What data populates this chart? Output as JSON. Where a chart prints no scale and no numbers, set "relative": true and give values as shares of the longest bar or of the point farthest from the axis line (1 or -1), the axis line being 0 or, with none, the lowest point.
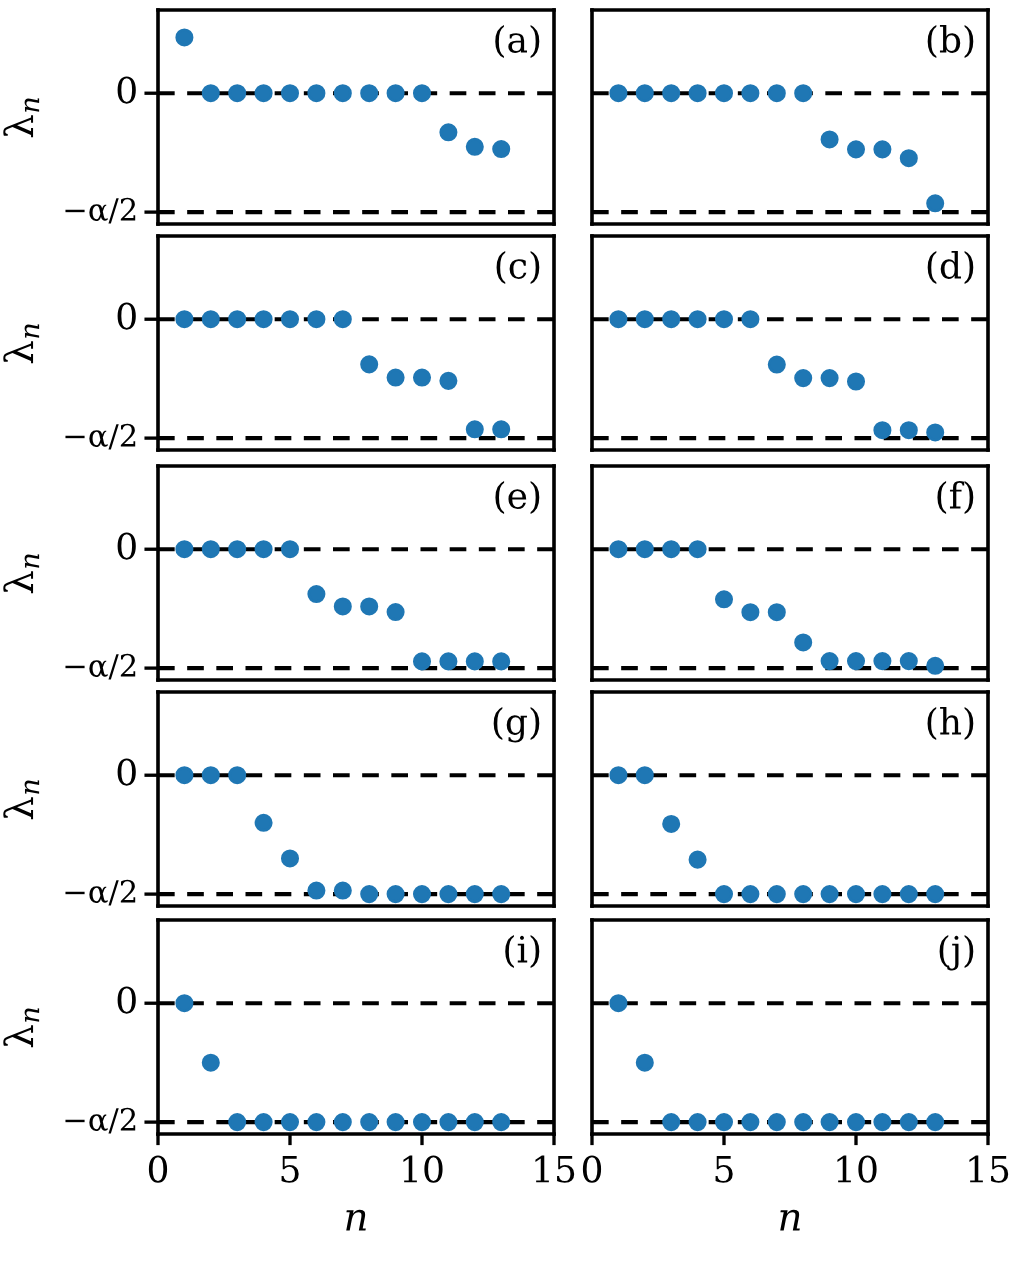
{
  "chart_data": [
    {
      "type": "scatter",
      "relative": true,
      "x": [
        1,
        2,
        3,
        4,
        5,
        6,
        7,
        8,
        9,
        10,
        11,
        12,
        13
      ],
      "series": [
        {
          "color": "#1f77b4",
          "values": [
            1,
            0,
            0,
            0,
            0,
            0,
            0,
            0,
            0,
            0,
            -0.7,
            -0.96,
            -1
          ]
        }
      ],
      "xlim": [
        0,
        15
      ],
      "xticks": [
        0,
        5,
        10,
        15
      ],
      "ylabel": "λ$_{n}$",
      "ref_lines": [
        {
          "axis": "y",
          "value": 0,
          "label": "0",
          "color": "#000000",
          "line_style": "dashed"
        },
        {
          "axis": "y",
          "value": -2.13,
          "label": "−α/2",
          "color": "#000000",
          "line_style": "dashed"
        }
      ],
      "annotations": [
        "(a)"
      ],
      "tick_labels": false,
      "marker": "circle",
      "grid": false,
      "legend": false
    },
    {
      "type": "scatter",
      "relative": true,
      "x": [
        1,
        2,
        3,
        4,
        5,
        6,
        7,
        8,
        9,
        10,
        11,
        12,
        13
      ],
      "series": [
        {
          "color": "#1f77b4",
          "values": [
            0,
            0,
            0,
            0,
            0,
            0,
            0,
            0,
            -0.42,
            -0.51,
            -0.51,
            -0.59,
            -1
          ]
        }
      ],
      "xlim": [
        0,
        15
      ],
      "xticks": [
        0,
        5,
        10,
        15
      ],
      "ref_lines": [
        {
          "axis": "y",
          "value": 0,
          "color": "#000000",
          "line_style": "dashed"
        },
        {
          "axis": "y",
          "value": -1.08,
          "color": "#000000",
          "line_style": "dashed"
        }
      ],
      "annotations": [
        "(b)"
      ],
      "tick_labels": false,
      "marker": "circle",
      "grid": false,
      "legend": false
    },
    {
      "type": "scatter",
      "relative": true,
      "x": [
        1,
        2,
        3,
        4,
        5,
        6,
        7,
        8,
        9,
        10,
        11,
        12,
        13
      ],
      "series": [
        {
          "color": "#1f77b4",
          "values": [
            0,
            0,
            0,
            0,
            0,
            0,
            0,
            -0.41,
            -0.53,
            -0.53,
            -0.56,
            -1,
            -1
          ]
        }
      ],
      "xlim": [
        0,
        15
      ],
      "xticks": [
        0,
        5,
        10,
        15
      ],
      "ylabel": "λ$_{n}$",
      "ref_lines": [
        {
          "axis": "y",
          "value": 0,
          "label": "0",
          "color": "#000000",
          "line_style": "dashed"
        },
        {
          "axis": "y",
          "value": -1.08,
          "label": "−α/2",
          "color": "#000000",
          "line_style": "dashed"
        }
      ],
      "annotations": [
        "(c)"
      ],
      "tick_labels": false,
      "marker": "circle",
      "grid": false,
      "legend": false
    },
    {
      "type": "scatter",
      "relative": true,
      "x": [
        1,
        2,
        3,
        4,
        5,
        6,
        7,
        8,
        9,
        10,
        11,
        12,
        13
      ],
      "series": [
        {
          "color": "#1f77b4",
          "values": [
            0,
            0,
            0,
            0,
            0,
            0,
            -0.4,
            -0.52,
            -0.52,
            -0.55,
            -0.98,
            -0.98,
            -1
          ]
        }
      ],
      "xlim": [
        0,
        15
      ],
      "xticks": [
        0,
        5,
        10,
        15
      ],
      "ref_lines": [
        {
          "axis": "y",
          "value": 0,
          "color": "#000000",
          "line_style": "dashed"
        },
        {
          "axis": "y",
          "value": -1.05,
          "color": "#000000",
          "line_style": "dashed"
        }
      ],
      "annotations": [
        "(d)"
      ],
      "tick_labels": false,
      "marker": "circle",
      "grid": false,
      "legend": false
    },
    {
      "type": "scatter",
      "relative": true,
      "x": [
        1,
        2,
        3,
        4,
        5,
        6,
        7,
        8,
        9,
        10,
        11,
        12,
        13
      ],
      "series": [
        {
          "color": "#1f77b4",
          "values": [
            0,
            0,
            0,
            0,
            0,
            -0.4,
            -0.51,
            -0.51,
            -0.56,
            -1,
            -1,
            -1,
            -1
          ]
        }
      ],
      "xlim": [
        0,
        15
      ],
      "xticks": [
        0,
        5,
        10,
        15
      ],
      "ylabel": "λ$_{n}$",
      "ref_lines": [
        {
          "axis": "y",
          "value": 0,
          "label": "0",
          "color": "#000000",
          "line_style": "dashed"
        },
        {
          "axis": "y",
          "value": -1.06,
          "label": "−α/2",
          "color": "#000000",
          "line_style": "dashed"
        }
      ],
      "annotations": [
        "(e)"
      ],
      "tick_labels": false,
      "marker": "circle",
      "grid": false,
      "legend": false
    },
    {
      "type": "scatter",
      "relative": true,
      "x": [
        1,
        2,
        3,
        4,
        5,
        6,
        7,
        8,
        9,
        10,
        11,
        12,
        13
      ],
      "series": [
        {
          "color": "#1f77b4",
          "values": [
            0,
            0,
            0,
            0,
            -0.43,
            -0.54,
            -0.54,
            -0.8,
            -0.96,
            -0.96,
            -0.96,
            -0.96,
            -1
          ]
        }
      ],
      "xlim": [
        0,
        15
      ],
      "xticks": [
        0,
        5,
        10,
        15
      ],
      "ref_lines": [
        {
          "axis": "y",
          "value": 0,
          "color": "#000000",
          "line_style": "dashed"
        },
        {
          "axis": "y",
          "value": -1.02,
          "color": "#000000",
          "line_style": "dashed"
        }
      ],
      "annotations": [
        "(f)"
      ],
      "tick_labels": false,
      "marker": "circle",
      "grid": false,
      "legend": false
    },
    {
      "type": "scatter",
      "relative": true,
      "x": [
        1,
        2,
        3,
        4,
        5,
        6,
        7,
        8,
        9,
        10,
        11,
        12,
        13
      ],
      "series": [
        {
          "color": "#1f77b4",
          "values": [
            0,
            0,
            0,
            -0.4,
            -0.7,
            -0.97,
            -0.97,
            -1,
            -1,
            -1,
            -1,
            -1,
            -1
          ]
        }
      ],
      "xlim": [
        0,
        15
      ],
      "xticks": [
        0,
        5,
        10,
        15
      ],
      "ylabel": "λ$_{n}$",
      "ref_lines": [
        {
          "axis": "y",
          "value": 0,
          "label": "0",
          "color": "#000000",
          "line_style": "dashed"
        },
        {
          "axis": "y",
          "value": -1,
          "label": "−α/2",
          "color": "#000000",
          "line_style": "dashed"
        }
      ],
      "annotations": [
        "(g)"
      ],
      "tick_labels": false,
      "marker": "circle",
      "grid": false,
      "legend": false
    },
    {
      "type": "scatter",
      "relative": true,
      "x": [
        1,
        2,
        3,
        4,
        5,
        6,
        7,
        8,
        9,
        10,
        11,
        12,
        13
      ],
      "series": [
        {
          "color": "#1f77b4",
          "values": [
            0,
            0,
            -0.41,
            -0.71,
            -1,
            -1,
            -1,
            -1,
            -1,
            -1,
            -1,
            -1,
            -1
          ]
        }
      ],
      "xlim": [
        0,
        15
      ],
      "xticks": [
        0,
        5,
        10,
        15
      ],
      "ref_lines": [
        {
          "axis": "y",
          "value": 0,
          "color": "#000000",
          "line_style": "dashed"
        },
        {
          "axis": "y",
          "value": -1,
          "color": "#000000",
          "line_style": "dashed"
        }
      ],
      "annotations": [
        "(h)"
      ],
      "tick_labels": false,
      "marker": "circle",
      "grid": false,
      "legend": false
    },
    {
      "type": "scatter",
      "relative": true,
      "x": [
        1,
        2,
        3,
        4,
        5,
        6,
        7,
        8,
        9,
        10,
        11,
        12,
        13
      ],
      "series": [
        {
          "color": "#1f77b4",
          "values": [
            0,
            -0.5,
            -1,
            -1,
            -1,
            -1,
            -1,
            -1,
            -1,
            -1,
            -1,
            -1,
            -1
          ]
        }
      ],
      "xlim": [
        0,
        15
      ],
      "xticks": [
        0,
        5,
        10,
        15
      ],
      "ylabel": "λ$_{n}$",
      "xlabel": "n",
      "ref_lines": [
        {
          "axis": "y",
          "value": 0,
          "label": "0",
          "color": "#000000",
          "line_style": "dashed"
        },
        {
          "axis": "y",
          "value": -1,
          "label": "−α/2",
          "color": "#000000",
          "line_style": "dashed"
        }
      ],
      "annotations": [
        "(i)"
      ],
      "tick_labels": "x",
      "marker": "circle",
      "grid": false,
      "legend": false
    },
    {
      "type": "scatter",
      "relative": true,
      "x": [
        1,
        2,
        3,
        4,
        5,
        6,
        7,
        8,
        9,
        10,
        11,
        12,
        13
      ],
      "series": [
        {
          "color": "#1f77b4",
          "values": [
            0,
            -0.5,
            -1,
            -1,
            -1,
            -1,
            -1,
            -1,
            -1,
            -1,
            -1,
            -1,
            -1
          ]
        }
      ],
      "xlim": [
        0,
        15
      ],
      "xticks": [
        0,
        5,
        10,
        15
      ],
      "xlabel": "n",
      "ref_lines": [
        {
          "axis": "y",
          "value": 0,
          "color": "#000000",
          "line_style": "dashed"
        },
        {
          "axis": "y",
          "value": -1,
          "color": "#000000",
          "line_style": "dashed"
        }
      ],
      "annotations": [
        "(j)"
      ],
      "tick_labels": "x",
      "marker": "circle",
      "grid": false,
      "legend": false
    }
  ]
}
